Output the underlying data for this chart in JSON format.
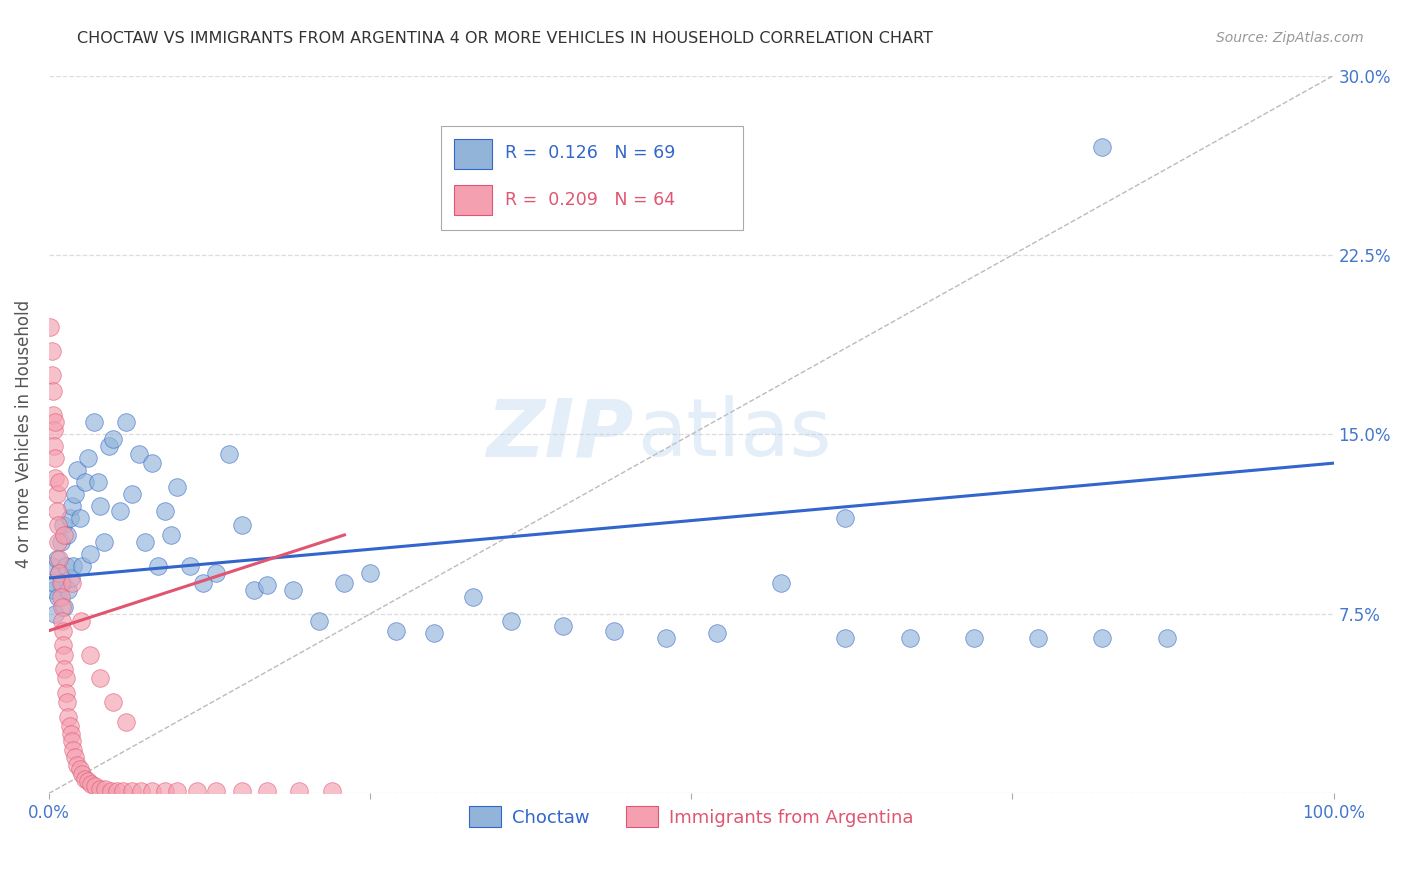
{
  "title": "CHOCTAW VS IMMIGRANTS FROM ARGENTINA 4 OR MORE VEHICLES IN HOUSEHOLD CORRELATION CHART",
  "source": "Source: ZipAtlas.com",
  "ylabel": "4 or more Vehicles in Household",
  "xlim": [
    0,
    1.0
  ],
  "ylim": [
    0,
    0.3
  ],
  "blue_color": "#92B4D9",
  "pink_color": "#F4A0B0",
  "blue_line_color": "#3366CC",
  "pink_line_color": "#E05570",
  "diag_color": "#BBBBBB",
  "watermark_zip": "ZIP",
  "watermark_atlas": "atlas",
  "legend_r1": "R =  0.126   N = 69",
  "legend_r2": "R =  0.209   N = 64",
  "choctaw_x": [
    0.002,
    0.003,
    0.004,
    0.005,
    0.006,
    0.007,
    0.008,
    0.009,
    0.01,
    0.011,
    0.012,
    0.013,
    0.014,
    0.015,
    0.016,
    0.017,
    0.018,
    0.019,
    0.02,
    0.022,
    0.024,
    0.026,
    0.028,
    0.03,
    0.032,
    0.035,
    0.038,
    0.04,
    0.043,
    0.047,
    0.05,
    0.055,
    0.06,
    0.065,
    0.07,
    0.075,
    0.08,
    0.085,
    0.09,
    0.095,
    0.1,
    0.11,
    0.12,
    0.13,
    0.14,
    0.15,
    0.16,
    0.17,
    0.19,
    0.21,
    0.23,
    0.25,
    0.27,
    0.3,
    0.33,
    0.36,
    0.4,
    0.44,
    0.48,
    0.52,
    0.57,
    0.62,
    0.67,
    0.72,
    0.77,
    0.82,
    0.87,
    0.82,
    0.62
  ],
  "choctaw_y": [
    0.095,
    0.085,
    0.088,
    0.075,
    0.098,
    0.082,
    0.092,
    0.105,
    0.088,
    0.112,
    0.078,
    0.095,
    0.108,
    0.085,
    0.115,
    0.09,
    0.12,
    0.095,
    0.125,
    0.135,
    0.115,
    0.095,
    0.13,
    0.14,
    0.1,
    0.155,
    0.13,
    0.12,
    0.105,
    0.145,
    0.148,
    0.118,
    0.155,
    0.125,
    0.142,
    0.105,
    0.138,
    0.095,
    0.118,
    0.108,
    0.128,
    0.095,
    0.088,
    0.092,
    0.142,
    0.112,
    0.085,
    0.087,
    0.085,
    0.072,
    0.088,
    0.092,
    0.068,
    0.067,
    0.082,
    0.072,
    0.07,
    0.068,
    0.065,
    0.067,
    0.088,
    0.065,
    0.065,
    0.065,
    0.065,
    0.065,
    0.065,
    0.27,
    0.115
  ],
  "argentina_x": [
    0.001,
    0.002,
    0.002,
    0.003,
    0.003,
    0.004,
    0.004,
    0.005,
    0.005,
    0.006,
    0.006,
    0.007,
    0.007,
    0.008,
    0.008,
    0.009,
    0.009,
    0.01,
    0.01,
    0.011,
    0.011,
    0.012,
    0.012,
    0.013,
    0.013,
    0.014,
    0.015,
    0.016,
    0.017,
    0.018,
    0.019,
    0.02,
    0.022,
    0.024,
    0.026,
    0.028,
    0.03,
    0.033,
    0.036,
    0.04,
    0.044,
    0.048,
    0.053,
    0.058,
    0.065,
    0.072,
    0.08,
    0.09,
    0.1,
    0.115,
    0.13,
    0.15,
    0.17,
    0.195,
    0.22,
    0.005,
    0.008,
    0.012,
    0.018,
    0.025,
    0.032,
    0.04,
    0.05,
    0.06
  ],
  "argentina_y": [
    0.195,
    0.185,
    0.175,
    0.168,
    0.158,
    0.152,
    0.145,
    0.14,
    0.132,
    0.125,
    0.118,
    0.112,
    0.105,
    0.098,
    0.092,
    0.088,
    0.082,
    0.078,
    0.072,
    0.068,
    0.062,
    0.058,
    0.052,
    0.048,
    0.042,
    0.038,
    0.032,
    0.028,
    0.025,
    0.022,
    0.018,
    0.015,
    0.012,
    0.01,
    0.008,
    0.006,
    0.005,
    0.004,
    0.003,
    0.002,
    0.002,
    0.001,
    0.001,
    0.001,
    0.001,
    0.001,
    0.001,
    0.001,
    0.001,
    0.001,
    0.001,
    0.001,
    0.001,
    0.001,
    0.001,
    0.155,
    0.13,
    0.108,
    0.088,
    0.072,
    0.058,
    0.048,
    0.038,
    0.03
  ],
  "blue_line_x": [
    0.0,
    1.0
  ],
  "blue_line_y": [
    0.09,
    0.138
  ],
  "pink_line_x": [
    0.0,
    0.23
  ],
  "pink_line_y": [
    0.068,
    0.108
  ]
}
